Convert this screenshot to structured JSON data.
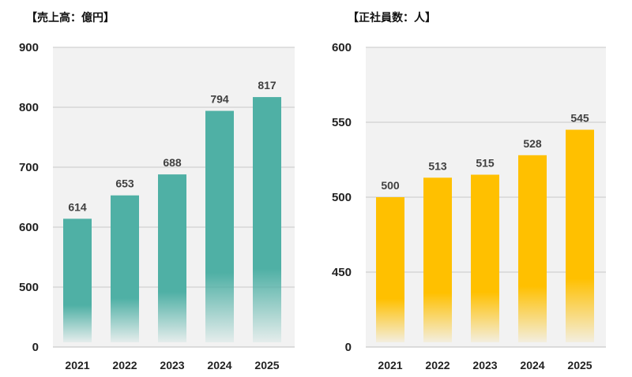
{
  "chart_data": [
    {
      "type": "bar",
      "title": "【売上高：億円】",
      "categories": [
        "2021",
        "2022",
        "2023",
        "2024",
        "2025"
      ],
      "values": [
        614,
        653,
        688,
        794,
        817
      ],
      "y_ticks": [
        "0",
        "500",
        "600",
        "700",
        "800",
        "900"
      ],
      "ylim": [
        450,
        900
      ],
      "axis_break": "bottom tick labelled 0; bars faded at base",
      "bar_color": "#4FB0A5",
      "grid": true,
      "plot_background": "#F2F2F2",
      "data_labels": true
    },
    {
      "type": "bar",
      "title": "【正社員数：人】",
      "categories": [
        "2021",
        "2022",
        "2023",
        "2024",
        "2025"
      ],
      "values": [
        500,
        513,
        515,
        528,
        545
      ],
      "y_ticks": [
        "0",
        "450",
        "500",
        "550",
        "600"
      ],
      "ylim": [
        425,
        600
      ],
      "axis_break": "bottom tick labelled 0; bars faded at base",
      "bar_color": "#FFC000",
      "grid": true,
      "plot_background": "#F2F2F2",
      "data_labels": true
    }
  ]
}
